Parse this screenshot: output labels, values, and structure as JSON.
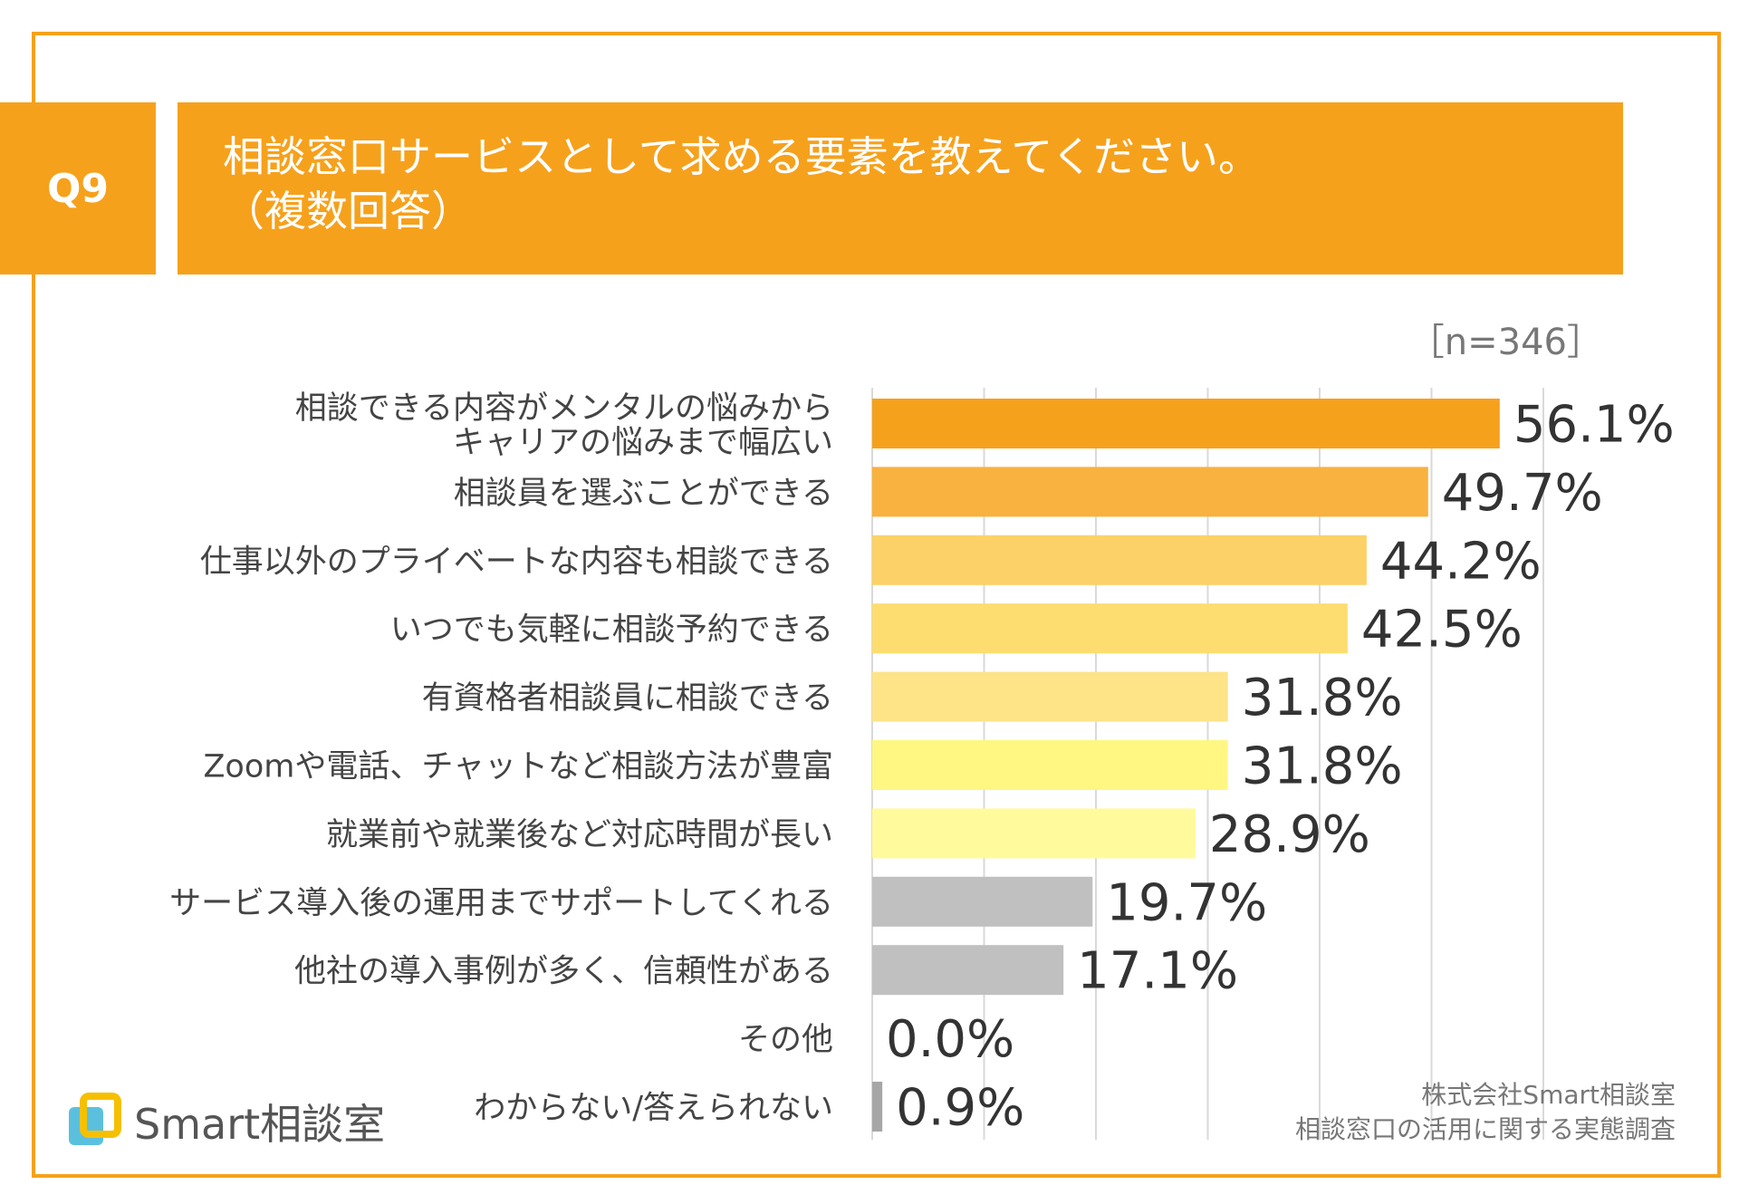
{
  "question": {
    "number": "Q9",
    "title_line1": "相談窓口サービスとして求める要素を教えてください。",
    "title_line2": "（複数回答）"
  },
  "sample_size": "［n=346］",
  "source": {
    "line1": "株式会社Smart相談室",
    "line2": "相談窓口の活用に関する実態調査"
  },
  "logo": {
    "text": "Smart相談室"
  },
  "chart_data": {
    "type": "bar",
    "orientation": "horizontal",
    "title": "相談窓口サービスとして求める要素を教えてください。（複数回答）",
    "unit": "%",
    "xlim": [
      0,
      60
    ],
    "grid": true,
    "categories": [
      [
        "相談できる内容がメンタルの悩みから",
        "キャリアの悩みまで幅広い"
      ],
      [
        "相談員を選ぶことができる"
      ],
      [
        "仕事以外のプライベートな内容も相談できる"
      ],
      [
        "いつでも気軽に相談予約できる"
      ],
      [
        "有資格者相談員に相談できる"
      ],
      [
        "Zoomや電話、チャットなど相談方法が豊富"
      ],
      [
        "就業前や就業後など対応時間が長い"
      ],
      [
        "サービス導入後の運用までサポートしてくれる"
      ],
      [
        "他社の導入事例が多く、信頼性がある"
      ],
      [
        "その他"
      ],
      [
        "わからない/答えられない"
      ]
    ],
    "values": [
      56.1,
      49.7,
      44.2,
      42.5,
      31.8,
      31.8,
      28.9,
      19.7,
      17.1,
      0.0,
      0.9
    ],
    "labels": [
      "56.1%",
      "49.7%",
      "44.2%",
      "42.5%",
      "31.8%",
      "31.8%",
      "28.9%",
      "19.7%",
      "17.1%",
      "0.0%",
      "0.9%"
    ],
    "colors": [
      "#F6A11C",
      "#F9B13F",
      "#FCD167",
      "#FDDD70",
      "#FEE487",
      "#FFF782",
      "#FFFA9C",
      "#C0C0C0",
      "#C0C0C0",
      "#C0C0C0",
      "#A6A6A6"
    ]
  }
}
